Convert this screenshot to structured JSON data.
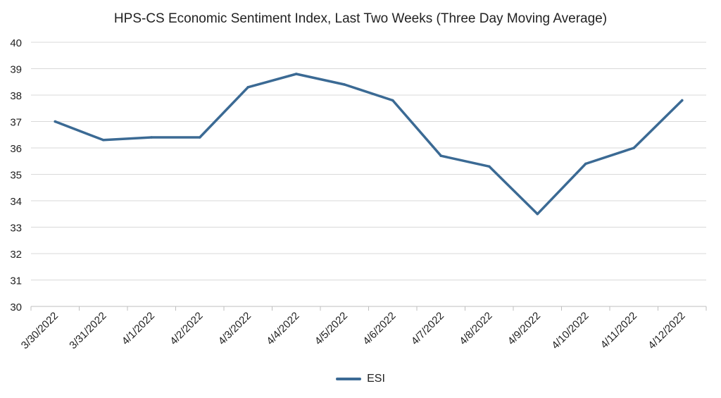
{
  "chart_data": {
    "type": "line",
    "title": "HPS-CS Economic Sentiment Index, Last Two Weeks (Three Day Moving Average)",
    "xlabel": "",
    "ylabel": "",
    "categories": [
      "3/30/2022",
      "3/31/2022",
      "4/1/2022",
      "4/2/2022",
      "4/3/2022",
      "4/4/2022",
      "4/5/2022",
      "4/6/2022",
      "4/7/2022",
      "4/8/2022",
      "4/9/2022",
      "4/10/2022",
      "4/11/2022",
      "4/12/2022"
    ],
    "series": [
      {
        "name": "ESI",
        "values": [
          37.0,
          36.3,
          36.4,
          36.4,
          38.3,
          38.8,
          38.4,
          37.8,
          35.7,
          35.3,
          33.5,
          35.4,
          36.0,
          37.8
        ]
      }
    ],
    "ylim": [
      30,
      40
    ],
    "yticks": [
      30,
      31,
      32,
      33,
      34,
      35,
      36,
      37,
      38,
      39,
      40
    ],
    "grid": "horizontal",
    "legend": "bottom-center",
    "colors": {
      "series": "#3b6a94",
      "grid": "#d9d9d9",
      "axis": "#bfbfbf",
      "text": "#222222"
    }
  }
}
